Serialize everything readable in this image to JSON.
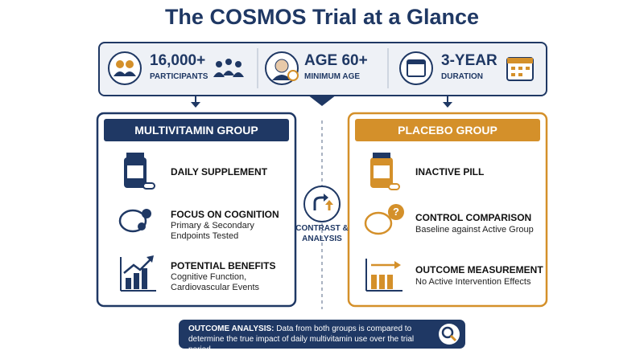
{
  "title": "The COSMOS Trial at a Glance",
  "stats": [
    {
      "value": "16,000+",
      "label": "PARTICIPANTS"
    },
    {
      "value": "AGE 60+",
      "label": "MINIMUM AGE"
    },
    {
      "value": "3-YEAR",
      "label": "DURATION"
    }
  ],
  "groups": [
    {
      "title": "MULTIVITAMIN GROUP",
      "items": [
        {
          "title": "DAILY SUPPLEMENT"
        },
        {
          "title": "FOCUS ON COGNITION",
          "text": "Primary & Secondary Endpoints Tested"
        },
        {
          "title": "POTENTIAL BENEFITS",
          "text": "Cognitive Function, Cardiovascular Events"
        }
      ]
    },
    {
      "title": "PLACEBO GROUP",
      "items": [
        {
          "title": "INACTIVE PILL"
        },
        {
          "title": "CONTROL COMPARISON",
          "text": "Baseline against Active Group"
        },
        {
          "title": "OUTCOME MEASUREMENT",
          "text": "No Active Intervention Effects"
        }
      ]
    }
  ],
  "center": "CONTRAST & ANALYSIS",
  "footer": {
    "label": "OUTCOME ANALYSIS:",
    "text": "Data from both groups is compared to determine the true impact of daily multivitamin use over the trial period."
  }
}
